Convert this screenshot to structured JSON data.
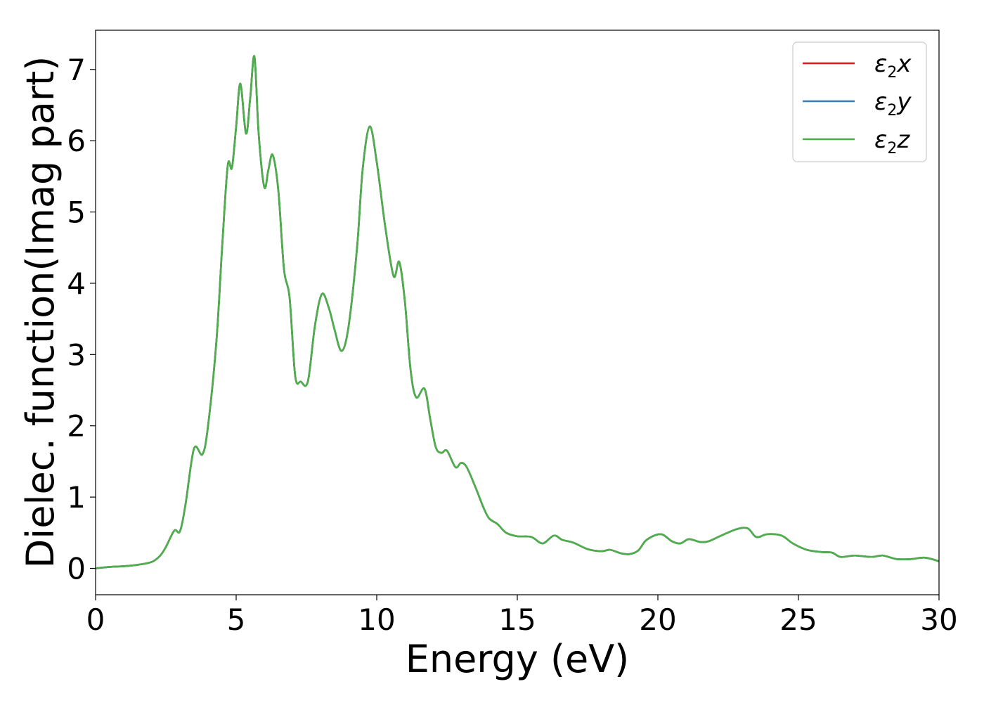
{
  "chart_data": {
    "type": "line",
    "xlabel": "Energy (eV)",
    "ylabel": "Dielec. function(Imag part)",
    "xlim": [
      0,
      30
    ],
    "ylim": [
      -0.37,
      7.55
    ],
    "xticks": [
      "0",
      "5",
      "10",
      "15",
      "20",
      "25",
      "30"
    ],
    "yticks": [
      "0",
      "1",
      "2",
      "3",
      "4",
      "5",
      "6",
      "7"
    ],
    "grid": false,
    "legend_position": "top-right",
    "x": [
      0,
      0.5,
      1.0,
      1.5,
      2.0,
      2.3,
      2.5,
      2.8,
      3.0,
      3.2,
      3.5,
      3.8,
      4.0,
      4.3,
      4.5,
      4.7,
      4.85,
      5.0,
      5.15,
      5.35,
      5.5,
      5.65,
      5.8,
      6.0,
      6.15,
      6.3,
      6.5,
      6.7,
      6.9,
      7.1,
      7.3,
      7.55,
      7.8,
      8.05,
      8.3,
      8.5,
      8.75,
      9.0,
      9.3,
      9.5,
      9.75,
      10.0,
      10.3,
      10.6,
      10.8,
      11.0,
      11.2,
      11.4,
      11.7,
      11.9,
      12.1,
      12.3,
      12.5,
      12.8,
      13.0,
      13.2,
      13.5,
      13.8,
      14.0,
      14.3,
      14.6,
      15.0,
      15.5,
      15.9,
      16.3,
      16.6,
      17.0,
      17.5,
      18.0,
      18.3,
      18.7,
      19.0,
      19.3,
      19.6,
      20.1,
      20.5,
      20.8,
      21.1,
      21.5,
      21.8,
      22.2,
      22.8,
      23.2,
      23.5,
      23.9,
      24.4,
      24.8,
      25.3,
      25.8,
      26.2,
      26.5,
      27.0,
      27.6,
      28.0,
      28.5,
      29.0,
      29.5,
      30.0
    ],
    "series": [
      {
        "name": "ε2x",
        "color": "#e41a1c",
        "values": [
          0.0,
          0.02,
          0.03,
          0.05,
          0.09,
          0.18,
          0.3,
          0.53,
          0.52,
          0.9,
          1.68,
          1.6,
          2.0,
          3.2,
          4.5,
          5.65,
          5.62,
          6.2,
          6.8,
          6.1,
          6.6,
          7.18,
          6.1,
          5.35,
          5.6,
          5.8,
          5.3,
          4.2,
          3.8,
          2.7,
          2.62,
          2.62,
          3.4,
          3.85,
          3.65,
          3.35,
          3.05,
          3.4,
          4.5,
          5.6,
          6.2,
          5.7,
          4.8,
          4.1,
          4.3,
          3.75,
          2.8,
          2.4,
          2.52,
          2.1,
          1.7,
          1.62,
          1.65,
          1.42,
          1.48,
          1.42,
          1.15,
          0.85,
          0.7,
          0.62,
          0.5,
          0.45,
          0.44,
          0.35,
          0.46,
          0.4,
          0.36,
          0.27,
          0.24,
          0.26,
          0.21,
          0.2,
          0.25,
          0.4,
          0.48,
          0.38,
          0.35,
          0.41,
          0.37,
          0.38,
          0.45,
          0.55,
          0.56,
          0.44,
          0.48,
          0.46,
          0.35,
          0.26,
          0.23,
          0.22,
          0.16,
          0.18,
          0.16,
          0.18,
          0.13,
          0.13,
          0.15,
          0.1
        ]
      },
      {
        "name": "ε2y",
        "color": "#377eb8",
        "values": [
          0.0,
          0.02,
          0.03,
          0.05,
          0.09,
          0.18,
          0.3,
          0.53,
          0.52,
          0.9,
          1.68,
          1.6,
          2.0,
          3.2,
          4.5,
          5.65,
          5.62,
          6.2,
          6.8,
          6.1,
          6.6,
          7.18,
          6.1,
          5.35,
          5.6,
          5.8,
          5.3,
          4.2,
          3.8,
          2.7,
          2.62,
          2.62,
          3.4,
          3.85,
          3.65,
          3.35,
          3.05,
          3.4,
          4.5,
          5.6,
          6.2,
          5.7,
          4.8,
          4.1,
          4.3,
          3.75,
          2.8,
          2.4,
          2.52,
          2.1,
          1.7,
          1.62,
          1.65,
          1.42,
          1.48,
          1.42,
          1.15,
          0.85,
          0.7,
          0.62,
          0.5,
          0.45,
          0.44,
          0.35,
          0.46,
          0.4,
          0.36,
          0.27,
          0.24,
          0.26,
          0.21,
          0.2,
          0.25,
          0.4,
          0.48,
          0.38,
          0.35,
          0.41,
          0.37,
          0.38,
          0.45,
          0.55,
          0.56,
          0.44,
          0.48,
          0.46,
          0.35,
          0.26,
          0.23,
          0.22,
          0.16,
          0.18,
          0.16,
          0.18,
          0.13,
          0.13,
          0.15,
          0.1
        ]
      },
      {
        "name": "ε2z",
        "color": "#4daf4a",
        "values": [
          0.0,
          0.02,
          0.03,
          0.05,
          0.09,
          0.18,
          0.3,
          0.53,
          0.52,
          0.9,
          1.68,
          1.6,
          2.0,
          3.2,
          4.5,
          5.65,
          5.62,
          6.2,
          6.8,
          6.1,
          6.6,
          7.18,
          6.1,
          5.35,
          5.6,
          5.8,
          5.3,
          4.2,
          3.8,
          2.7,
          2.62,
          2.62,
          3.4,
          3.85,
          3.65,
          3.35,
          3.05,
          3.4,
          4.5,
          5.6,
          6.2,
          5.7,
          4.8,
          4.1,
          4.3,
          3.75,
          2.8,
          2.4,
          2.52,
          2.1,
          1.7,
          1.62,
          1.65,
          1.42,
          1.48,
          1.42,
          1.15,
          0.85,
          0.7,
          0.62,
          0.5,
          0.45,
          0.44,
          0.35,
          0.46,
          0.4,
          0.36,
          0.27,
          0.24,
          0.26,
          0.21,
          0.2,
          0.25,
          0.4,
          0.48,
          0.38,
          0.35,
          0.41,
          0.37,
          0.38,
          0.45,
          0.55,
          0.56,
          0.44,
          0.48,
          0.46,
          0.35,
          0.26,
          0.23,
          0.22,
          0.16,
          0.18,
          0.16,
          0.18,
          0.13,
          0.13,
          0.15,
          0.1
        ]
      }
    ]
  },
  "legend": {
    "items": [
      {
        "symbol": "ε",
        "sub": "2",
        "var": "x"
      },
      {
        "symbol": "ε",
        "sub": "2",
        "var": "y"
      },
      {
        "symbol": "ε",
        "sub": "2",
        "var": "z"
      }
    ]
  }
}
